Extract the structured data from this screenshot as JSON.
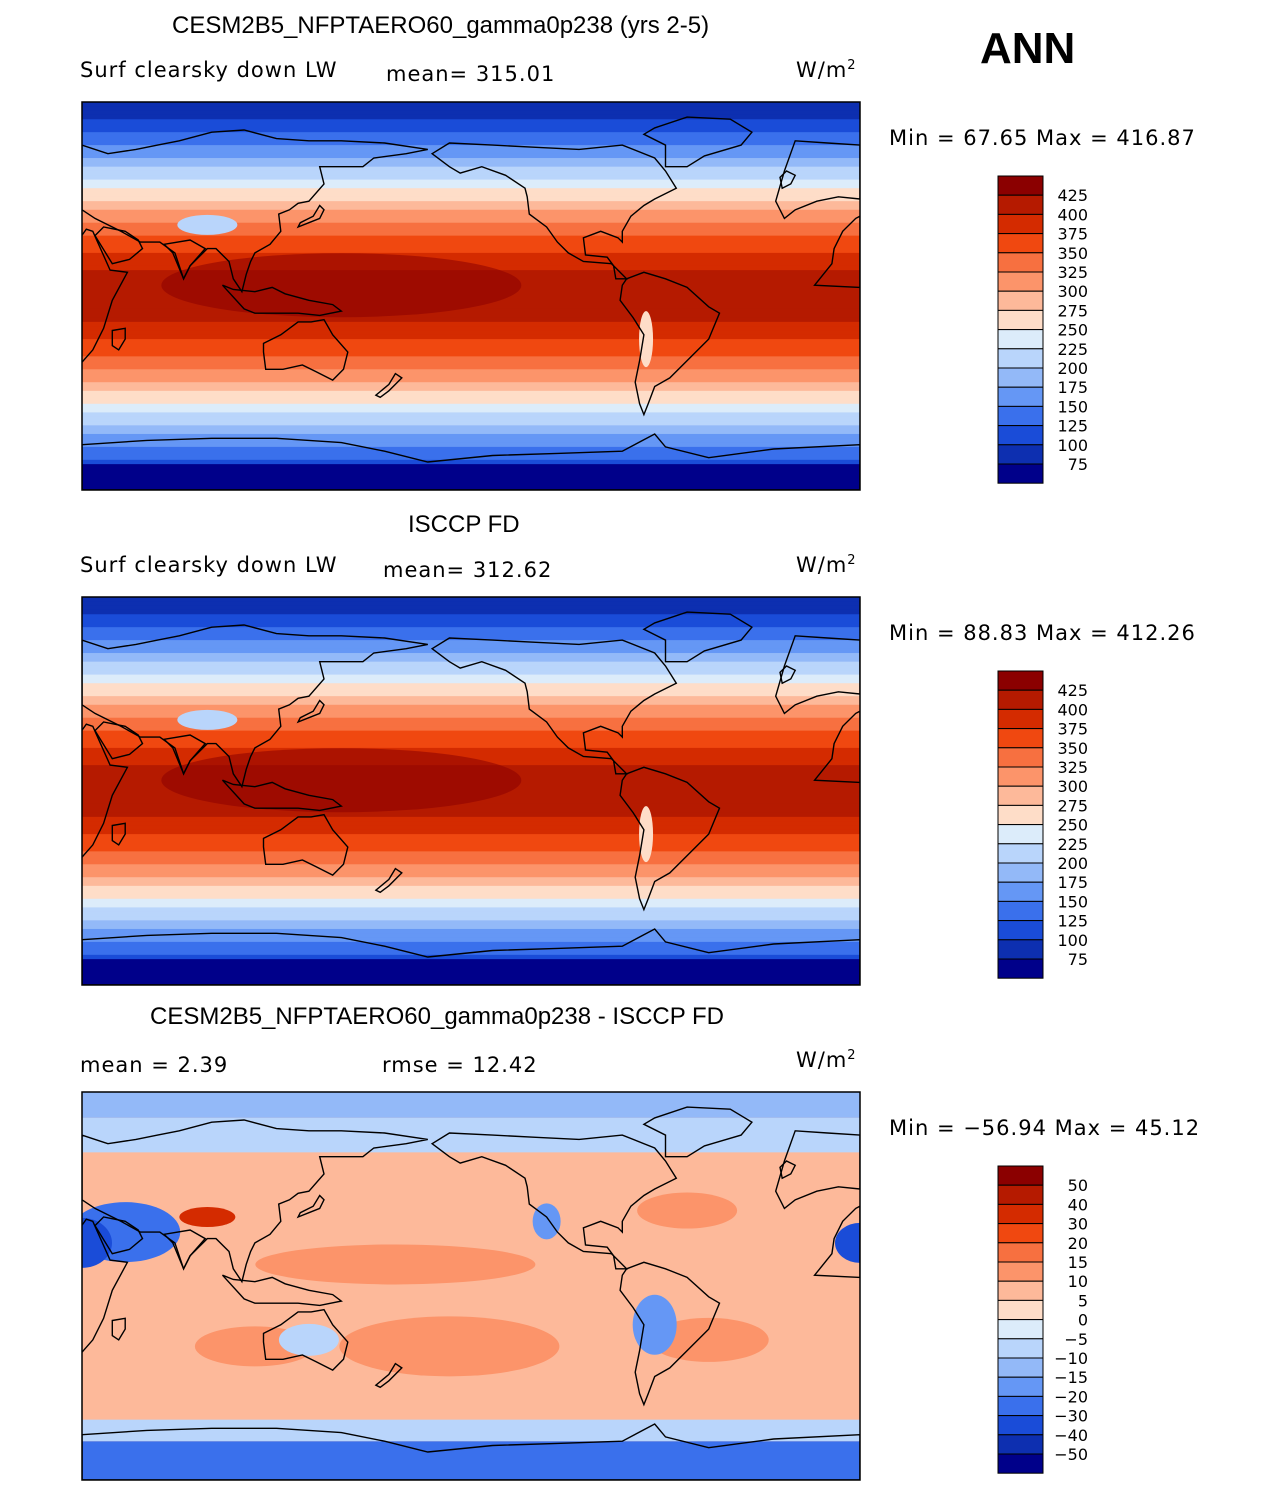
{
  "season": "ANN",
  "unit_base": "W/m",
  "unit_exp": "2",
  "chart_data": [
    {
      "type": "heatmap",
      "title": "CESM2B5_NFPTAERO60_gamma0p238 (yrs 2-5)",
      "variable": "Surf clearsky down LW",
      "stat_text": "mean= 315.01",
      "mean": 315.01,
      "min": 67.65,
      "max": 416.87,
      "min_max_text": "Min =   67.65 Max = 416.87",
      "colorbar_levels": [
        "425",
        "400",
        "375",
        "350",
        "325",
        "300",
        "275",
        "250",
        "225",
        "200",
        "175",
        "150",
        "125",
        "100",
        "75"
      ],
      "colorbar_colors": [
        "#8b0000",
        "#b51a00",
        "#d42b00",
        "#f04810",
        "#f77040",
        "#fc946a",
        "#fdb99a",
        "#feddc8",
        "#dcecfa",
        "#b9d5fb",
        "#93b9f8",
        "#6597f5",
        "#3a70ec",
        "#1a4cd8",
        "#0d2fb0",
        "#00008a"
      ]
    },
    {
      "type": "heatmap",
      "title": "ISCCP FD",
      "variable": "Surf clearsky down LW",
      "stat_text": "mean= 312.62",
      "mean": 312.62,
      "min": 88.83,
      "max": 412.26,
      "min_max_text": "Min =   88.83 Max = 412.26",
      "colorbar_levels": [
        "425",
        "400",
        "375",
        "350",
        "325",
        "300",
        "275",
        "250",
        "225",
        "200",
        "175",
        "150",
        "125",
        "100",
        "75"
      ],
      "colorbar_colors": [
        "#8b0000",
        "#b51a00",
        "#d42b00",
        "#f04810",
        "#f77040",
        "#fc946a",
        "#fdb99a",
        "#feddc8",
        "#dcecfa",
        "#b9d5fb",
        "#93b9f8",
        "#6597f5",
        "#3a70ec",
        "#1a4cd8",
        "#0d2fb0",
        "#00008a"
      ]
    },
    {
      "type": "heatmap",
      "title": "CESM2B5_NFPTAERO60_gamma0p238 - ISCCP FD",
      "stat_text_mean": "mean =    2.39",
      "stat_text_rmse": "rmse =   12.42",
      "mean": 2.39,
      "rmse": 12.42,
      "min": -56.94,
      "max": 45.12,
      "min_max_text": "Min = −56.94 Max =   45.12",
      "colorbar_levels": [
        "50",
        "40",
        "30",
        "20",
        "15",
        "10",
        "5",
        "0",
        "−5",
        "−10",
        "−15",
        "−20",
        "−30",
        "−40",
        "−50"
      ],
      "colorbar_colors": [
        "#8b0000",
        "#b51a00",
        "#d42b00",
        "#f04810",
        "#f77040",
        "#fc946a",
        "#fdb99a",
        "#feddc8",
        "#dcecfa",
        "#b9d5fb",
        "#93b9f8",
        "#6597f5",
        "#3a70ec",
        "#1a4cd8",
        "#0d2fb0",
        "#00008a"
      ]
    }
  ]
}
